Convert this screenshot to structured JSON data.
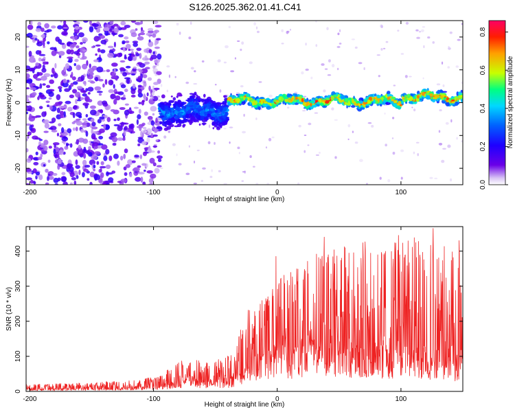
{
  "figure": {
    "title": "S126.2025.362.01.41.C41"
  },
  "chart_data": [
    {
      "type": "heatmap",
      "id": "spectrogram",
      "title": "S126.2025.362.01.41.C41",
      "xlabel": "Height of straight line (km)",
      "ylabel": "Frequency (Hz)",
      "xlim": [
        -203,
        150
      ],
      "ylim": [
        -25,
        25
      ],
      "xticks": [
        -200,
        -100,
        0,
        100
      ],
      "yticks": [
        -20,
        -10,
        0,
        10,
        20
      ],
      "colorbar": {
        "label": "Normalized spectral amplitude",
        "range": [
          0,
          0.86
        ],
        "ticks": [
          0.0,
          0.2,
          0.4,
          0.6,
          0.8
        ],
        "colormap": [
          "#ffffff",
          "#d9c6f5",
          "#6a00e8",
          "#1e00ff",
          "#0060ff",
          "#00d8ff",
          "#00ff80",
          "#c8ff00",
          "#ffa000",
          "#ff1e00",
          "#ff0064"
        ]
      },
      "regions": [
        {
          "x_from": -203,
          "x_to": -95,
          "description": "diffuse low-amplitude noise across all frequencies",
          "level": [
            0.05,
            0.2
          ]
        },
        {
          "x_from": -95,
          "x_to": -40,
          "freq_center": -2.5,
          "freq_halfwidth": 6,
          "level": [
            0.1,
            0.4
          ]
        },
        {
          "x_from": -40,
          "x_to": 150,
          "freq_center": 0.5,
          "freq_halfwidth": 2,
          "level": [
            0.2,
            0.86
          ]
        }
      ]
    },
    {
      "type": "line",
      "id": "snr",
      "xlabel": "Height of straight line (km)",
      "ylabel": "SNR (10 * v/v)",
      "xlim": [
        -203,
        150
      ],
      "ylim": [
        0,
        470
      ],
      "xticks": [
        -200,
        -100,
        0,
        100
      ],
      "yticks": [
        0,
        100,
        200,
        300,
        400
      ],
      "color": "#ee2222",
      "envelope": [
        {
          "x": -203,
          "base": 8,
          "peak": 20
        },
        {
          "x": -150,
          "base": 10,
          "peak": 25
        },
        {
          "x": -110,
          "base": 15,
          "peak": 35
        },
        {
          "x": -95,
          "base": 20,
          "peak": 45
        },
        {
          "x": -80,
          "base": 35,
          "peak": 85
        },
        {
          "x": -70,
          "base": 45,
          "peak": 95
        },
        {
          "x": -55,
          "base": 35,
          "peak": 80
        },
        {
          "x": -35,
          "base": 45,
          "peak": 110
        },
        {
          "x": -25,
          "base": 80,
          "peak": 230
        },
        {
          "x": -15,
          "base": 110,
          "peak": 250
        },
        {
          "x": 0,
          "base": 140,
          "peak": 320
        },
        {
          "x": 20,
          "base": 150,
          "peak": 370
        },
        {
          "x": 45,
          "base": 160,
          "peak": 420
        },
        {
          "x": 80,
          "base": 150,
          "peak": 430
        },
        {
          "x": 110,
          "base": 140,
          "peak": 440
        },
        {
          "x": 130,
          "base": 120,
          "peak": 430
        },
        {
          "x": 150,
          "base": 110,
          "peak": 400
        }
      ],
      "annotated_peaks": [
        {
          "x": -1,
          "y": 385
        },
        {
          "x": 38,
          "y": 440
        },
        {
          "x": 98,
          "y": 445
        },
        {
          "x": 126,
          "y": 465
        },
        {
          "x": 147,
          "y": 430
        }
      ]
    }
  ]
}
